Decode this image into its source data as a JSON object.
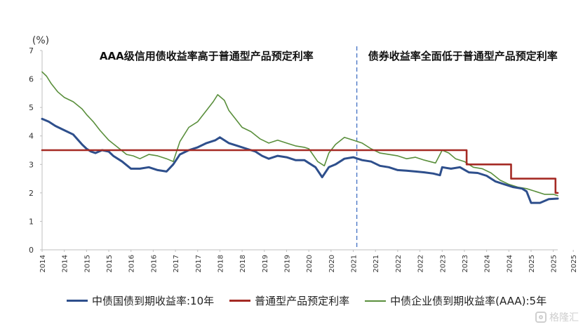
{
  "chart_data": {
    "type": "line",
    "unit_label": "(%)",
    "annotations": {
      "left": "AAA级信用债收益率高于普通型产品预定利率",
      "right": "债券收益率全面低于普通型产品预定利率"
    },
    "ylim": [
      0,
      7
    ],
    "y_ticks": [
      "0",
      "1",
      "2",
      "3",
      "4",
      "5",
      "6",
      "7"
    ],
    "xlim": [
      2014.0,
      2025.6
    ],
    "x_ticks": [
      "2014",
      "2014",
      "2015",
      "2015",
      "2016",
      "2016",
      "2017",
      "2017",
      "2018",
      "2018",
      "2019",
      "2019",
      "2020",
      "2020",
      "2021",
      "2021",
      "2022",
      "2022",
      "2023",
      "2023",
      "2024",
      "2024",
      "2025",
      "2025",
      "2025"
    ],
    "x_tick_pos": [
      2014.0,
      2014.5,
      2015.0,
      2015.5,
      2016.0,
      2016.5,
      2017.0,
      2017.5,
      2018.0,
      2018.5,
      2019.0,
      2019.5,
      2020.0,
      2020.5,
      2021.0,
      2021.5,
      2022.0,
      2022.5,
      2023.0,
      2023.5,
      2024.0,
      2024.5,
      2025.0,
      2025.5,
      2025.95
    ],
    "divider_x": 2021.08,
    "colors": {
      "cgb": "#2e4f8c",
      "rate": "#a52a24",
      "corp": "#5a8f3c",
      "divider": "#4472c4"
    },
    "series": [
      {
        "name": "中债国债到期收益率:10年",
        "x": [
          2014.0,
          2014.15,
          2014.3,
          2014.5,
          2014.7,
          2014.9,
          2015.0,
          2015.1,
          2015.2,
          2015.35,
          2015.5,
          2015.6,
          2015.8,
          2016.0,
          2016.2,
          2016.4,
          2016.6,
          2016.8,
          2016.95,
          2017.1,
          2017.3,
          2017.5,
          2017.7,
          2017.9,
          2018.0,
          2018.2,
          2018.4,
          2018.6,
          2018.8,
          2018.95,
          2019.1,
          2019.3,
          2019.5,
          2019.7,
          2019.9,
          2020.0,
          2020.15,
          2020.3,
          2020.45,
          2020.6,
          2020.8,
          2021.0,
          2021.2,
          2021.4,
          2021.6,
          2021.8,
          2022.0,
          2022.2,
          2022.4,
          2022.6,
          2022.8,
          2022.95,
          2023.0,
          2023.2,
          2023.4,
          2023.6,
          2023.8,
          2024.0,
          2024.2,
          2024.4,
          2024.6,
          2024.8,
          2024.9,
          2025.0,
          2025.2,
          2025.4,
          2025.6
        ],
        "values": [
          4.6,
          4.5,
          4.35,
          4.2,
          4.05,
          3.7,
          3.55,
          3.45,
          3.4,
          3.5,
          3.45,
          3.3,
          3.1,
          2.85,
          2.85,
          2.9,
          2.8,
          2.75,
          3.0,
          3.35,
          3.5,
          3.6,
          3.75,
          3.85,
          3.95,
          3.75,
          3.65,
          3.55,
          3.45,
          3.3,
          3.2,
          3.3,
          3.25,
          3.15,
          3.15,
          3.05,
          2.9,
          2.55,
          2.9,
          3.0,
          3.2,
          3.25,
          3.15,
          3.1,
          2.95,
          2.9,
          2.8,
          2.78,
          2.75,
          2.72,
          2.68,
          2.62,
          2.9,
          2.85,
          2.9,
          2.72,
          2.7,
          2.6,
          2.4,
          2.3,
          2.2,
          2.15,
          2.05,
          1.65,
          1.65,
          1.78,
          1.8
        ]
      },
      {
        "name": "普通型产品预定利率",
        "x": [
          2014.0,
          2023.55,
          2023.55,
          2024.55,
          2024.55,
          2025.55,
          2025.55,
          2025.6
        ],
        "values": [
          3.5,
          3.5,
          3.0,
          3.0,
          2.5,
          2.5,
          2.0,
          2.0
        ]
      },
      {
        "name": "中债企业债到期收益率(AAA):5年",
        "x": [
          2014.0,
          2014.1,
          2014.2,
          2014.35,
          2014.5,
          2014.7,
          2014.9,
          2015.0,
          2015.15,
          2015.3,
          2015.5,
          2015.7,
          2015.9,
          2016.05,
          2016.2,
          2016.4,
          2016.6,
          2016.8,
          2016.95,
          2017.1,
          2017.3,
          2017.5,
          2017.7,
          2017.85,
          2017.95,
          2018.1,
          2018.2,
          2018.35,
          2018.5,
          2018.7,
          2018.9,
          2019.1,
          2019.3,
          2019.5,
          2019.7,
          2019.9,
          2020.0,
          2020.2,
          2020.35,
          2020.45,
          2020.6,
          2020.8,
          2021.0,
          2021.2,
          2021.4,
          2021.6,
          2021.8,
          2022.0,
          2022.2,
          2022.4,
          2022.6,
          2022.85,
          2023.0,
          2023.15,
          2023.3,
          2023.5,
          2023.7,
          2023.9,
          2024.1,
          2024.3,
          2024.5,
          2024.7,
          2024.9,
          2025.1,
          2025.3,
          2025.5,
          2025.6
        ],
        "values": [
          6.25,
          6.1,
          5.85,
          5.55,
          5.35,
          5.2,
          4.95,
          4.75,
          4.5,
          4.2,
          3.85,
          3.6,
          3.35,
          3.3,
          3.2,
          3.35,
          3.3,
          3.2,
          3.1,
          3.8,
          4.3,
          4.5,
          4.9,
          5.2,
          5.45,
          5.25,
          4.9,
          4.6,
          4.3,
          4.15,
          3.9,
          3.75,
          3.85,
          3.75,
          3.65,
          3.6,
          3.55,
          3.1,
          2.95,
          3.4,
          3.7,
          3.95,
          3.85,
          3.75,
          3.55,
          3.4,
          3.35,
          3.3,
          3.2,
          3.25,
          3.15,
          3.05,
          3.5,
          3.4,
          3.2,
          3.1,
          2.9,
          2.85,
          2.7,
          2.45,
          2.3,
          2.2,
          2.15,
          2.05,
          1.95,
          1.95,
          1.9
        ]
      }
    ]
  },
  "legend": {
    "item1": "中债国债到期收益率:10年",
    "item2": "普通型产品预定利率",
    "item3": "中债企业债到期收益率(AAA):5年"
  },
  "watermark": {
    "text": "格隆汇"
  }
}
